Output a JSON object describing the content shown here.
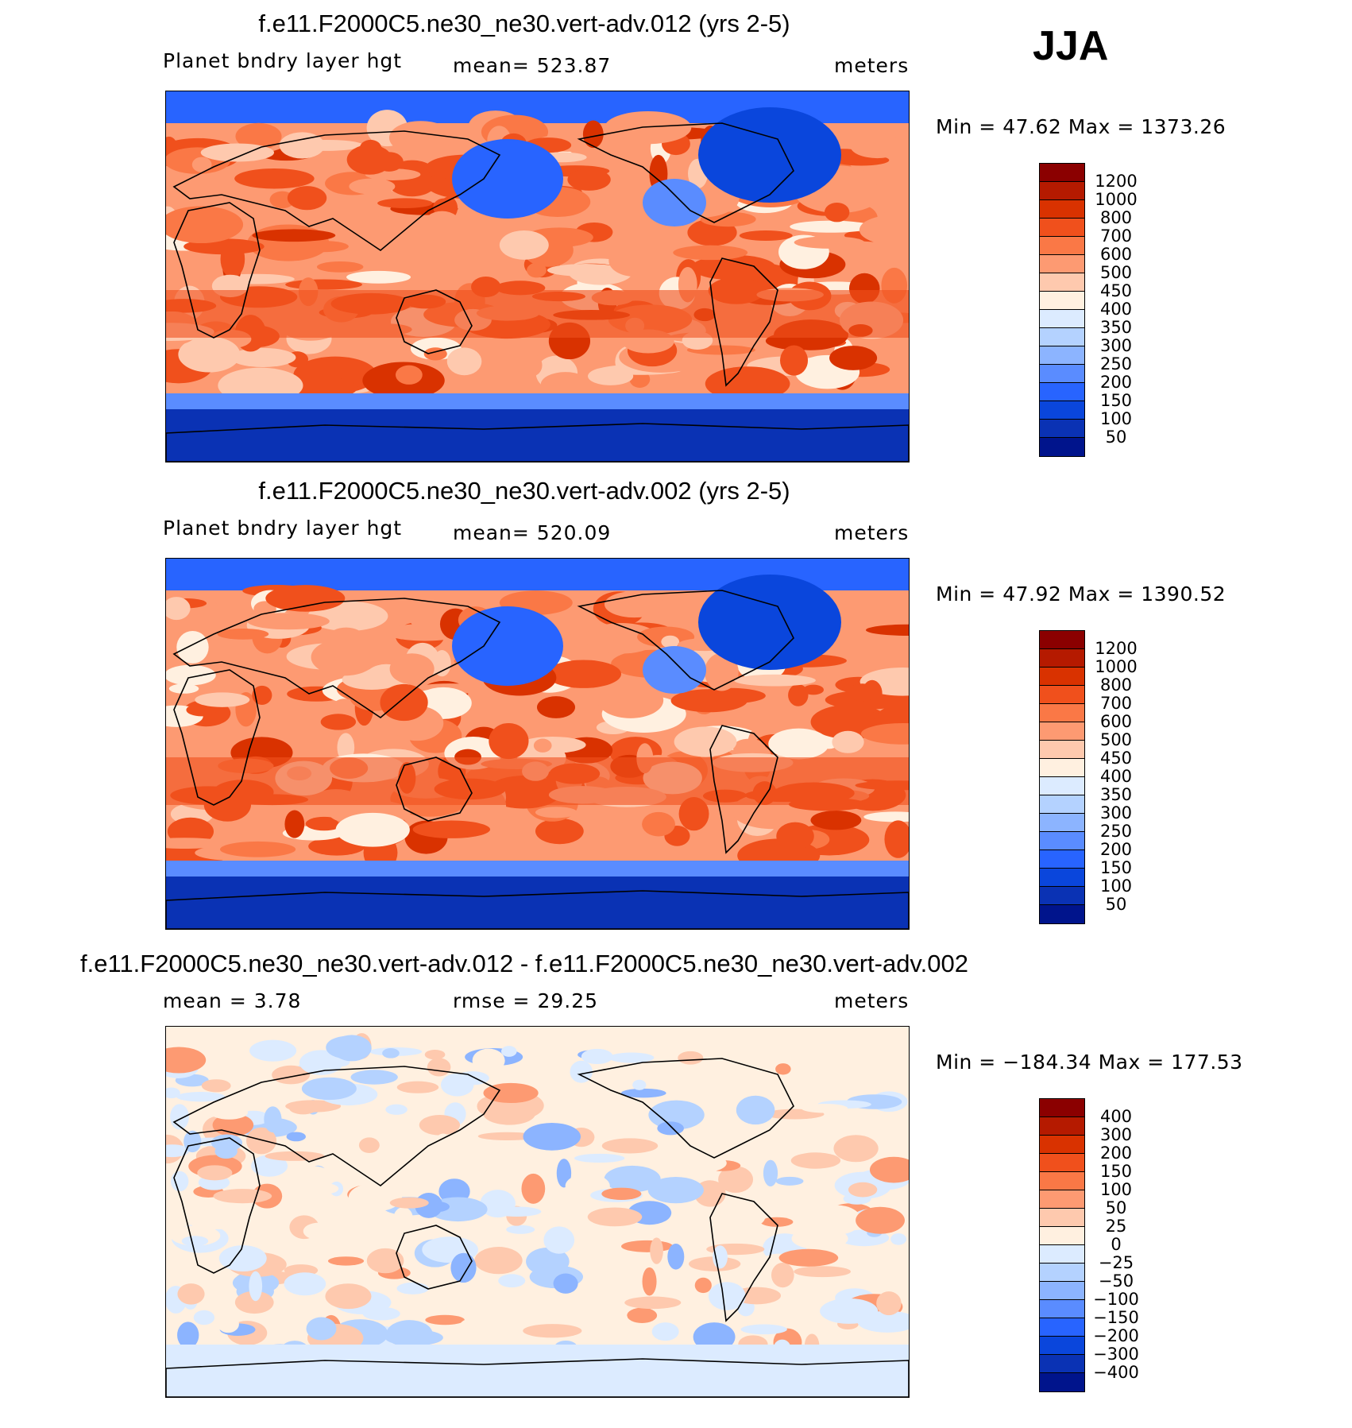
{
  "season": "JJA",
  "panels": [
    {
      "title": "f.e11.F2000C5.ne30_ne30.vert-adv.012 (yrs 2-5)",
      "left_label": "Planet bndry layer hgt",
      "center_label": "mean=  523.87",
      "right_label": "meters",
      "minmax": "Min =   47.62  Max  =  1373.26",
      "colorbar": {
        "colors": [
          "#8b0000",
          "#b51a00",
          "#d93200",
          "#f0501c",
          "#fa7846",
          "#fd9a72",
          "#fec9ae",
          "#fff0e0",
          "#dcebff",
          "#b4d2ff",
          "#8cb4ff",
          "#5a8cff",
          "#2864ff",
          "#0a46dc",
          "#0a32b4",
          "#00148c"
        ],
        "labels": [
          "1200",
          "1000",
          "800",
          "700",
          "600",
          "500",
          "450",
          "400",
          "350",
          "300",
          "250",
          "200",
          "150",
          "100",
          "50"
        ]
      }
    },
    {
      "title": "f.e11.F2000C5.ne30_ne30.vert-adv.002 (yrs 2-5)",
      "left_label": "Planet bndry layer hgt",
      "center_label": "mean=  520.09",
      "right_label": "meters",
      "minmax": "Min =   47.92  Max  =  1390.52",
      "colorbar": {
        "colors": [
          "#8b0000",
          "#b51a00",
          "#d93200",
          "#f0501c",
          "#fa7846",
          "#fd9a72",
          "#fec9ae",
          "#fff0e0",
          "#dcebff",
          "#b4d2ff",
          "#8cb4ff",
          "#5a8cff",
          "#2864ff",
          "#0a46dc",
          "#0a32b4",
          "#00148c"
        ],
        "labels": [
          "1200",
          "1000",
          "800",
          "700",
          "600",
          "500",
          "450",
          "400",
          "350",
          "300",
          "250",
          "200",
          "150",
          "100",
          "50"
        ]
      }
    },
    {
      "title": "f.e11.F2000C5.ne30_ne30.vert-adv.012 - f.e11.F2000C5.ne30_ne30.vert-adv.002",
      "left_label": "mean =    3.78",
      "center_label": "rmse =   29.25",
      "right_label": "meters",
      "minmax": "Min = −184.34  Max  =  177.53",
      "colorbar": {
        "colors": [
          "#8b0000",
          "#b51a00",
          "#d93200",
          "#f0501c",
          "#fa7846",
          "#fd9a72",
          "#fec9ae",
          "#fff0e0",
          "#dcebff",
          "#b4d2ff",
          "#8cb4ff",
          "#5a8cff",
          "#2864ff",
          "#0a46dc",
          "#0a32b4",
          "#00148c"
        ],
        "labels": [
          "400",
          "300",
          "200",
          "150",
          "100",
          "50",
          "25",
          "0",
          "−25",
          "−50",
          "−100",
          "−150",
          "−200",
          "−300",
          "−400"
        ]
      }
    }
  ]
}
